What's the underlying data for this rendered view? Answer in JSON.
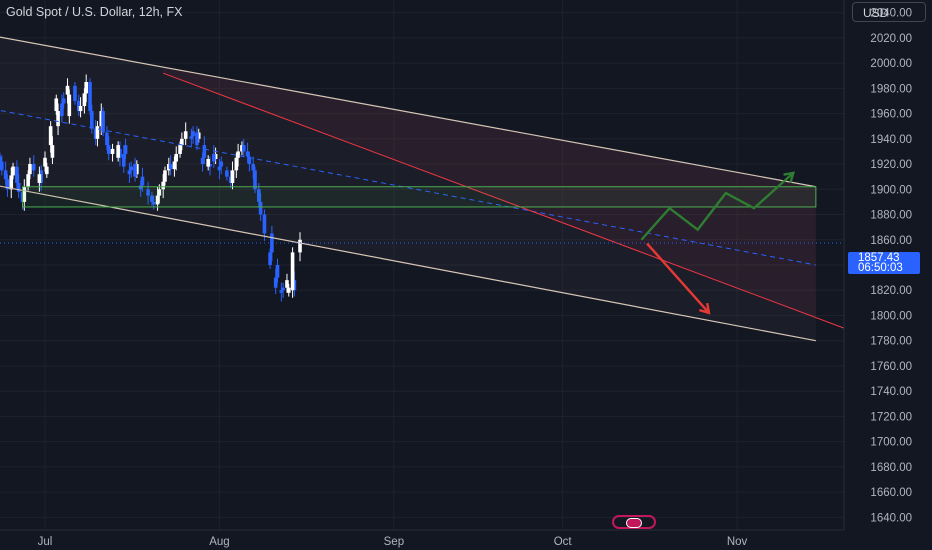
{
  "header": {
    "title": "Gold Spot / U.S. Dollar, 12h, FX",
    "currency": "USD"
  },
  "last_price": {
    "value": "1857.43",
    "countdown": "06:50:03"
  },
  "colors": {
    "background": "#131722",
    "up": "#ffffff",
    "down": "#2962ff",
    "axis_text": "#b2b5be",
    "channel": "#d7c6b7",
    "mid_line": "#2962ff",
    "trend_line": "#f23645",
    "zone": "#4caf50",
    "arrow_up": "#2e7d32",
    "arrow_down": "#e53935"
  },
  "chart_data": {
    "type": "candlestick",
    "timeframe": "12h",
    "y_axis": {
      "ticks": [
        1640,
        1660,
        1680,
        1700,
        1720,
        1740,
        1760,
        1780,
        1800,
        1820,
        1840,
        1860,
        1880,
        1900,
        1920,
        1940,
        1960,
        1980,
        2000,
        2020,
        2040
      ],
      "tick_labels": [
        "1640.00",
        "1660.00",
        "1680.00",
        "1700.00",
        "1720.00",
        "1740.00",
        "1760.00",
        "1780.00",
        "1800.00",
        "1820.00",
        "1840.00",
        "1860.00",
        "1880.00",
        "1900.00",
        "1920.00",
        "1940.00",
        "1960.00",
        "1980.00",
        "2000.00",
        "2020.00",
        "2040.00"
      ],
      "range": [
        1630,
        2050
      ]
    },
    "x_axis": {
      "labels": [
        "Jul",
        "Aug",
        "Sep",
        "Oct",
        "Nov"
      ],
      "label_dates": [
        "2023-07-01",
        "2023-08-01",
        "2023-09-01",
        "2023-10-01",
        "2023-11-01"
      ],
      "range": [
        "2023-06-23",
        "2023-11-20"
      ]
    },
    "closes": [
      1922,
      1915,
      1908,
      1900,
      1911,
      1918,
      1905,
      1898,
      1890,
      1902,
      1912,
      1920,
      1915,
      1905,
      1912,
      1918,
      1925,
      1935,
      1950,
      1962,
      1972,
      1968,
      1958,
      1975,
      1982,
      1970,
      1962,
      1966,
      1976,
      1985,
      1962,
      1948,
      1940,
      1950,
      1962,
      1945,
      1935,
      1928,
      1932,
      1925,
      1935,
      1928,
      1918,
      1915,
      1912,
      1920,
      1910,
      1903,
      1900,
      1895,
      1890,
      1888,
      1895,
      1900,
      1906,
      1915,
      1920,
      1916,
      1922,
      1928,
      1935,
      1940,
      1946,
      1942,
      1940,
      1945,
      1935,
      1925,
      1920,
      1918,
      1924,
      1928,
      1922,
      1918,
      1915,
      1910,
      1905,
      1915,
      1925,
      1930,
      1935,
      1930,
      1926,
      1920,
      1915,
      1900,
      1890,
      1880,
      1865,
      1850,
      1840,
      1830,
      1822,
      1820,
      1818,
      1822,
      1828,
      1820,
      1850,
      1860
    ],
    "overlays": {
      "upper_channel": {
        "start": [
          "2023-06-20",
          2023
        ],
        "end": [
          "2023-11-15",
          1902
        ]
      },
      "lower_channel": {
        "start": [
          "2023-06-20",
          1905
        ],
        "end": [
          "2023-11-15",
          1780
        ]
      },
      "mid_dashed": {
        "start": [
          "2023-06-20",
          1965
        ],
        "end": [
          "2023-11-15",
          1840
        ]
      },
      "red_trend": {
        "start": [
          "2023-07-22",
          1992
        ],
        "end": [
          "2023-11-20",
          1790
        ]
      },
      "support_zone": {
        "from": [
          "2023-06-27",
          1886
        ],
        "to": [
          "2023-11-15",
          1902
        ]
      },
      "upper_shading": {
        "from": [
          "2023-07-22",
          1992
        ],
        "to": [
          "2023-11-15",
          1902
        ]
      },
      "green_path": [
        [
          "2023-10-15",
          1860
        ],
        [
          "2023-10-20",
          1885
        ],
        [
          "2023-10-25",
          1868
        ],
        [
          "2023-10-30",
          1897
        ],
        [
          "2023-11-04",
          1885
        ],
        [
          "2023-11-11",
          1913
        ]
      ],
      "red_path": [
        [
          "2023-10-16",
          1857
        ],
        [
          "2023-10-27",
          1802
        ]
      ]
    }
  }
}
